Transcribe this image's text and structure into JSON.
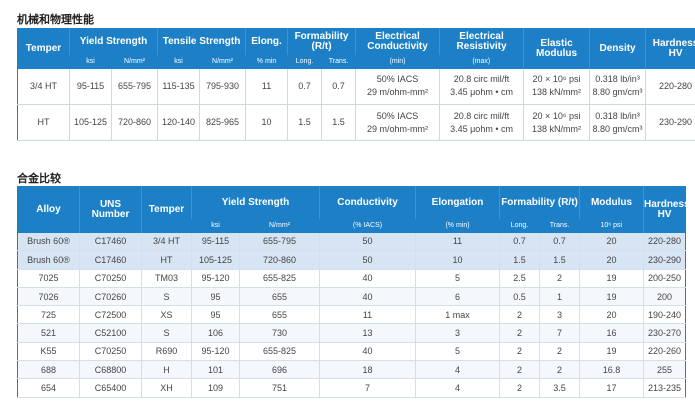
{
  "section1": {
    "title": "机械和物理性能"
  },
  "table1": {
    "headers": {
      "temper": "Temper",
      "yield": "Yield Strength",
      "tensile": "Tensile Strength",
      "elong": "Elong.",
      "formability": "Formability (R/t)",
      "conductivity": "Electrical Conductivity",
      "resistivity": "Electrical Resistivity",
      "modulus": "Elastic Modulus",
      "density": "Density",
      "hardness": "Hardness HV"
    },
    "subheaders": {
      "yield_ksi": "ksi",
      "yield_nmm": "N/mm²",
      "tensile_ksi": "ksi",
      "tensile_nmm": "N/mm²",
      "elong": "% min",
      "long": "Long.",
      "trans": "Trans.",
      "conductivity": "(min)",
      "resistivity": "(max)"
    },
    "rows": [
      {
        "temper": "3/4 HT",
        "yield_ksi": "95-115",
        "yield_nmm": "655-795",
        "tensile_ksi": "115-135",
        "tensile_nmm": "795-930",
        "elong": "11",
        "long": "0.7",
        "trans": "0.7",
        "cond1": "50% IACS",
        "cond2": "29 m/ohm-mm²",
        "res1": "20.8 circ mil/ft",
        "res2": "3.45 μohm • cm",
        "mod1": "20 × 10⁶ psi",
        "mod2": "138 kN/mm²",
        "den1": "0.318 lb/in³",
        "den2": "8.80 gm/cm³",
        "hardness": "220-280"
      },
      {
        "temper": "HT",
        "yield_ksi": "105-125",
        "yield_nmm": "720-860",
        "tensile_ksi": "120-140",
        "tensile_nmm": "825-965",
        "elong": "10",
        "long": "1.5",
        "trans": "1.5",
        "cond1": "50% IACS",
        "cond2": "29 m/ohm-mm²",
        "res1": "20.8 circ mil/ft",
        "res2": "3.45 μohm • cm",
        "mod1": "20 × 10⁶ psi",
        "mod2": "138 kN/mm²",
        "den1": "0.318 lb/in³",
        "den2": "8.80 gm/cm³",
        "hardness": "230-290"
      }
    ]
  },
  "section2": {
    "title": "合金比较"
  },
  "table2": {
    "headers": {
      "alloy": "Alloy",
      "uns": "UNS Number",
      "temper": "Temper",
      "yield": "Yield Strength",
      "conductivity": "Conductivity",
      "elongation": "Elongation",
      "formability": "Formability (R/t)",
      "modulus": "Modulus",
      "hardness": "Hardness HV"
    },
    "subheaders": {
      "ksi": "ksi",
      "nmm": "N/mm²",
      "cond": "(% IACS)",
      "elong": "(% min)",
      "long": "Long.",
      "trans": "Trans.",
      "modulus": "10⁶ psi"
    },
    "rows": [
      {
        "alloy": "Brush 60®",
        "uns": "C17460",
        "temper": "3/4 HT",
        "ksi": "95-115",
        "nmm": "655-795",
        "cond": "50",
        "elong": "11",
        "long": "0.7",
        "trans": "0.7",
        "mod": "20",
        "hv": "220-280",
        "highlight": true
      },
      {
        "alloy": "Brush 60®",
        "uns": "C17460",
        "temper": "HT",
        "ksi": "105-125",
        "nmm": "720-860",
        "cond": "50",
        "elong": "10",
        "long": "1.5",
        "trans": "1.5",
        "mod": "20",
        "hv": "230-290",
        "highlight": true
      },
      {
        "alloy": "7025",
        "uns": "C70250",
        "temper": "TM03",
        "ksi": "95-120",
        "nmm": "655-825",
        "cond": "40",
        "elong": "5",
        "long": "2.5",
        "trans": "2",
        "mod": "19",
        "hv": "200-250"
      },
      {
        "alloy": "7026",
        "uns": "C70260",
        "temper": "S",
        "ksi": "95",
        "nmm": "655",
        "cond": "40",
        "elong": "6",
        "long": "0.5",
        "trans": "1",
        "mod": "19",
        "hv": "200"
      },
      {
        "alloy": "725",
        "uns": "C72500",
        "temper": "XS",
        "ksi": "95",
        "nmm": "655",
        "cond": "11",
        "elong": "1 max",
        "long": "2",
        "trans": "3",
        "mod": "20",
        "hv": "190-240"
      },
      {
        "alloy": "521",
        "uns": "C52100",
        "temper": "S",
        "ksi": "106",
        "nmm": "730",
        "cond": "13",
        "elong": "3",
        "long": "2",
        "trans": "7",
        "mod": "16",
        "hv": "230-270"
      },
      {
        "alloy": "K55",
        "uns": "C70250",
        "temper": "R690",
        "ksi": "95-120",
        "nmm": "655-825",
        "cond": "40",
        "elong": "5",
        "long": "2",
        "trans": "2",
        "mod": "19",
        "hv": "220-260"
      },
      {
        "alloy": "688",
        "uns": "C68800",
        "temper": "H",
        "ksi": "101",
        "nmm": "696",
        "cond": "18",
        "elong": "4",
        "long": "2",
        "trans": "2",
        "mod": "16.8",
        "hv": "255"
      },
      {
        "alloy": "654",
        "uns": "C65400",
        "temper": "XH",
        "ksi": "109",
        "nmm": "751",
        "cond": "7",
        "elong": "4",
        "long": "2",
        "trans": "3.5",
        "mod": "17",
        "hv": "213-235"
      }
    ]
  }
}
